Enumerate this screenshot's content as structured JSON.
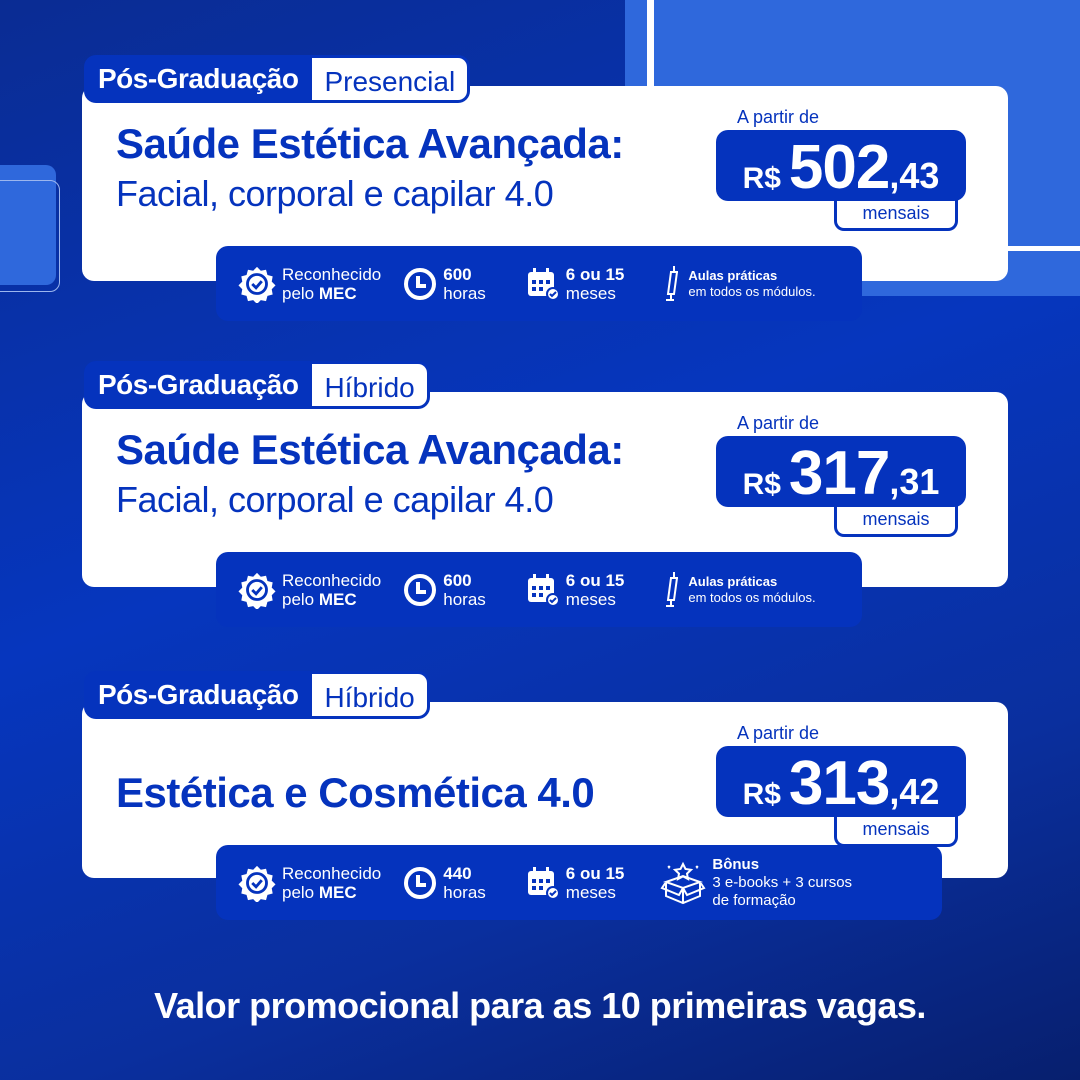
{
  "colors": {
    "primary": "#0533bd",
    "background": "#0a2c93",
    "accent_light": "#2f68dc",
    "white": "#ffffff"
  },
  "courses": [
    {
      "level": "Pós-Graduação",
      "modality": "Presencial",
      "title_line1": "Saúde Estética Avançada:",
      "title_line2": "Facial, corporal e capilar 4.0",
      "from_label": "A partir de",
      "currency": "R$",
      "price_int": "502",
      "price_dec": ",43",
      "period": "mensais",
      "features": {
        "mec_line1": "Reconhecido",
        "mec_line2a": "pelo ",
        "mec_line2b": "MEC",
        "hours_value": "600",
        "hours_label": "horas",
        "duration_value": "6 ou 15",
        "duration_label": "meses",
        "extra_icon": "syringe-icon",
        "extra_title": "Aulas práticas",
        "extra_text": "em todos os módulos."
      }
    },
    {
      "level": "Pós-Graduação",
      "modality": "Híbrido",
      "title_line1": "Saúde Estética Avançada:",
      "title_line2": "Facial, corporal e capilar 4.0",
      "from_label": "A partir de",
      "currency": "R$",
      "price_int": "317",
      "price_dec": ",31",
      "period": "mensais",
      "features": {
        "mec_line1": "Reconhecido",
        "mec_line2a": "pelo ",
        "mec_line2b": "MEC",
        "hours_value": "600",
        "hours_label": "horas",
        "duration_value": "6 ou 15",
        "duration_label": "meses",
        "extra_icon": "syringe-icon",
        "extra_title": "Aulas práticas",
        "extra_text": "em todos os módulos."
      }
    },
    {
      "level": "Pós-Graduação",
      "modality": "Híbrido",
      "title_line1": "Estética e Cosmética 4.0",
      "title_line2": "",
      "from_label": "A partir de",
      "currency": "R$",
      "price_int": "313",
      "price_dec": ",42",
      "period": "mensais",
      "features": {
        "mec_line1": "Reconhecido",
        "mec_line2a": "pelo ",
        "mec_line2b": "MEC",
        "hours_value": "440",
        "hours_label": "horas",
        "duration_value": "6 ou 15",
        "duration_label": "meses",
        "extra_icon": "gift-box-icon",
        "extra_title": "Bônus",
        "extra_text": "3 e-books + 3 cursos",
        "extra_text2": "de formação"
      }
    }
  ],
  "footer": "Valor promocional para as 10 primeiras vagas."
}
